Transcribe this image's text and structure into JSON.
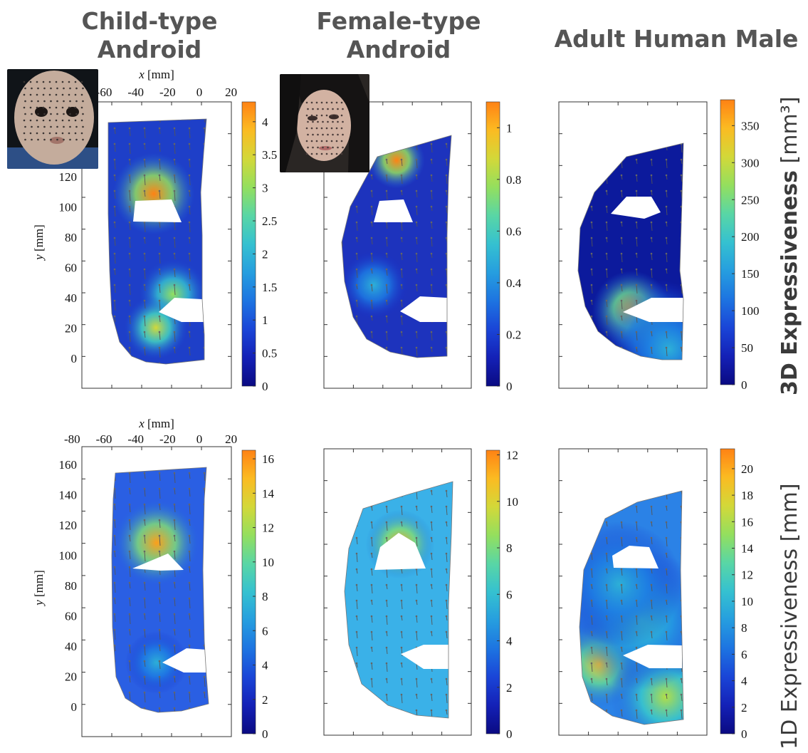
{
  "columns": [
    {
      "title": "Child-type\nAndroid"
    },
    {
      "title": "Female-type\nAndroid"
    },
    {
      "title": "Adult Human Male"
    }
  ],
  "rows": [
    {
      "label": "3D Expressiveness [mm³]",
      "bold_part": "3D Expressiveness",
      "unit_part": " [mm³]"
    },
    {
      "label": "1D Expressiveness [mm]"
    }
  ],
  "axes": {
    "xlabel": "x [mm]",
    "ylabel": "y [mm]"
  },
  "colors": {
    "low": "#1a1a9e",
    "mid": "#3fc0c8",
    "high": "#ff8c10",
    "title": "#555555",
    "photo_skin_child": "#c9b4a4",
    "photo_skin_female": "#d6b8a8"
  },
  "icons": [
    "child-android-photo",
    "female-android-photo"
  ],
  "chart_data": [
    {
      "type": "heatmap",
      "title": "",
      "row": "3D",
      "column": "Child-type Android",
      "xlabel": "x [mm]",
      "ylabel": "y [mm]",
      "x_ticks": [
        -60,
        -40,
        -20,
        0,
        20
      ],
      "y_ticks": [
        0,
        20,
        40,
        60,
        80,
        100,
        120
      ],
      "xlim": [
        -80,
        20
      ],
      "ylim": [
        -10,
        170
      ],
      "colorbar": {
        "ticks": [
          0,
          0.5,
          1,
          1.5,
          2,
          2.5,
          3,
          3.5,
          4
        ],
        "min": 0,
        "max": 4.3
      },
      "hotspots": [
        {
          "x": -32,
          "y": 110,
          "value": 4.2
        },
        {
          "x": -30,
          "y": 40,
          "value": 2.8
        },
        {
          "x": -33,
          "y": 20,
          "value": 3.4
        }
      ]
    },
    {
      "type": "heatmap",
      "title": "",
      "row": "3D",
      "column": "Female-type Android",
      "colorbar": {
        "ticks": [
          0,
          0.2,
          0.4,
          0.6,
          0.8,
          1
        ],
        "min": 0,
        "max": 1.1
      },
      "hotspots": [
        {
          "x": -32,
          "y": 148,
          "value": 1.05
        },
        {
          "x": -40,
          "y": 45,
          "value": 0.45
        }
      ]
    },
    {
      "type": "heatmap",
      "title": "",
      "row": "3D",
      "column": "Adult Human Male",
      "colorbar": {
        "ticks": [
          0,
          50,
          100,
          150,
          200,
          250,
          300,
          350
        ],
        "min": 0,
        "max": 385
      },
      "hotspots": [
        {
          "x": -50,
          "y": 38,
          "value": 330
        },
        {
          "x": -25,
          "y": 15,
          "value": 180
        }
      ]
    },
    {
      "type": "heatmap",
      "title": "",
      "row": "1D",
      "column": "Child-type Android",
      "xlabel": "x [mm]",
      "ylabel": "y [mm]",
      "x_ticks": [
        -80,
        -60,
        -40,
        -20,
        0,
        20
      ],
      "y_ticks": [
        0,
        20,
        40,
        60,
        80,
        100,
        120,
        140,
        160
      ],
      "xlim": [
        -80,
        20
      ],
      "ylim": [
        -10,
        170
      ],
      "colorbar": {
        "ticks": [
          0,
          2,
          4,
          6,
          8,
          10,
          12,
          14,
          16
        ],
        "min": 0,
        "max": 16.5
      },
      "hotspots": [
        {
          "x": -32,
          "y": 110,
          "value": 14.5
        }
      ]
    },
    {
      "type": "heatmap",
      "title": "",
      "row": "1D",
      "column": "Female-type Android",
      "colorbar": {
        "ticks": [
          0,
          2,
          4,
          6,
          8,
          10,
          12
        ],
        "min": 0,
        "max": 12.2
      },
      "hotspots": [
        {
          "x": -32,
          "y": 112,
          "value": 11.5
        }
      ]
    },
    {
      "type": "heatmap",
      "title": "",
      "row": "1D",
      "column": "Adult Human Male",
      "colorbar": {
        "ticks": [
          0,
          2,
          4,
          6,
          8,
          10,
          12,
          14,
          16,
          18,
          20
        ],
        "min": 0,
        "max": 21.5
      },
      "hotspots": [
        {
          "x": -52,
          "y": 30,
          "value": 18
        },
        {
          "x": -20,
          "y": 15,
          "value": 16
        }
      ]
    }
  ]
}
